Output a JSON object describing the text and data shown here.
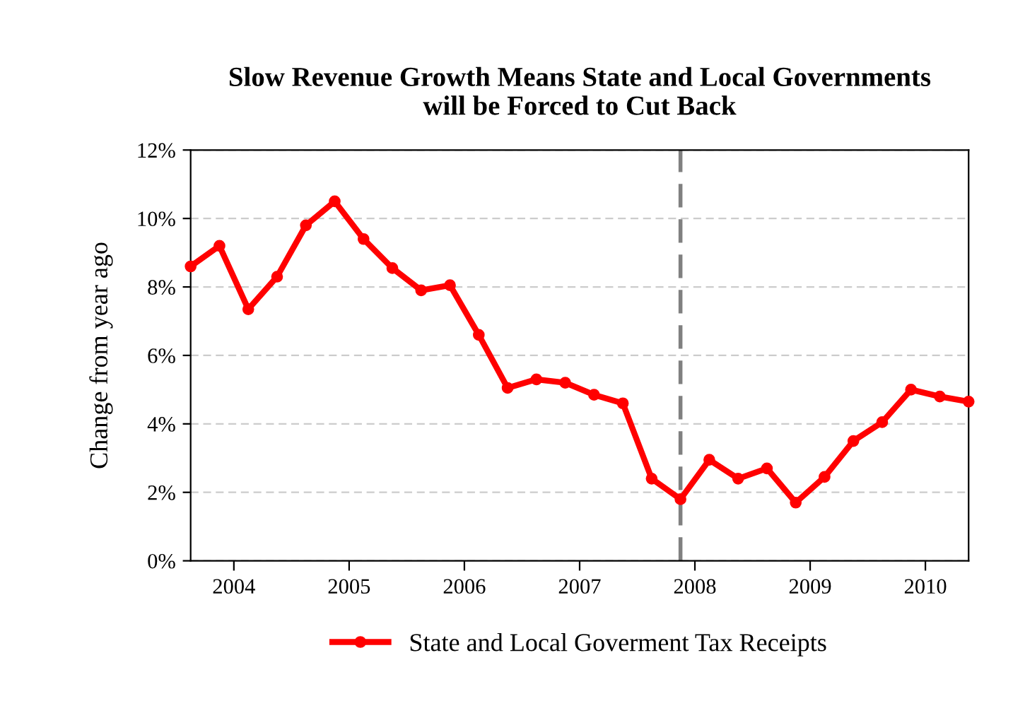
{
  "chart_data": {
    "type": "line",
    "title": "Slow Revenue Growth Means State and Local Governments\nwill be Forced to Cut Back",
    "ylabel": "Change from year ago",
    "x": [
      2003.625,
      2003.875,
      2004.125,
      2004.375,
      2004.625,
      2004.875,
      2005.125,
      2005.375,
      2005.625,
      2005.875,
      2006.125,
      2006.375,
      2006.625,
      2006.875,
      2007.125,
      2007.375,
      2007.625,
      2007.875,
      2008.125,
      2008.375,
      2008.625,
      2008.875,
      2009.125,
      2009.375,
      2009.625,
      2009.875,
      2010.125,
      2010.375
    ],
    "series": [
      {
        "name": "State and Local Goverment Tax Receipts",
        "color": "#ff0000",
        "values": [
          8.6,
          9.2,
          7.35,
          8.3,
          9.8,
          10.5,
          9.4,
          8.55,
          7.9,
          8.05,
          6.6,
          5.05,
          5.3,
          5.2,
          4.85,
          4.6,
          2.4,
          1.8,
          2.95,
          2.4,
          2.7,
          1.7,
          2.45,
          3.5,
          4.05,
          5.0,
          4.8,
          4.65
        ]
      }
    ],
    "xlim": [
      2003.625,
      2010.375
    ],
    "xticks": [
      2004,
      2005,
      2006,
      2007,
      2008,
      2009,
      2010
    ],
    "ylim": [
      0,
      12
    ],
    "yticks": [
      {
        "value": 0,
        "label": "0%"
      },
      {
        "value": 2,
        "label": "2%"
      },
      {
        "value": 4,
        "label": "4%"
      },
      {
        "value": 6,
        "label": "6%"
      },
      {
        "value": 8,
        "label": "8%"
      },
      {
        "value": 10,
        "label": "10%"
      },
      {
        "value": 12,
        "label": "12%"
      }
    ],
    "ref_lines": [
      {
        "axis": "x",
        "value": 2007.875,
        "color": "#808080",
        "line_style": "dashed"
      }
    ],
    "grid": "y",
    "legend": "bottom",
    "marker": "circle",
    "line_style": "solid"
  }
}
